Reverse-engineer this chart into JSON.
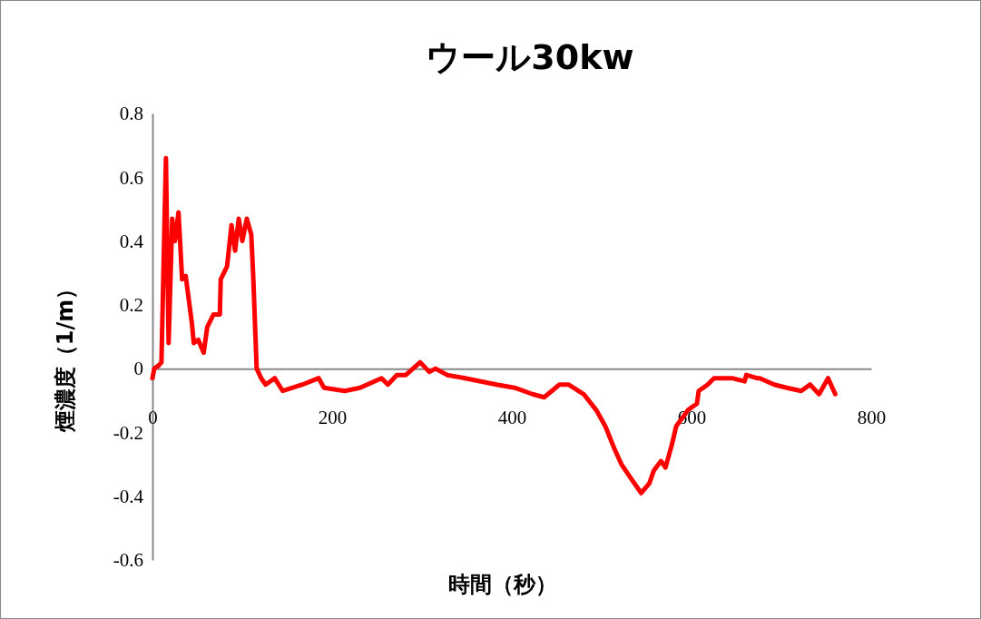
{
  "chart_data": {
    "type": "line",
    "title": "ウール30kw",
    "xlabel": "時間（秒）",
    "ylabel": "煙濃度（1/m）",
    "xlim": [
      0,
      800
    ],
    "xticks": [
      0,
      200,
      400,
      600,
      800
    ],
    "ylim": [
      -0.6,
      0.8
    ],
    "yticks": [
      -0.6,
      -0.4,
      -0.2,
      0,
      0.2,
      0.4,
      0.6,
      0.8
    ],
    "grid": false,
    "marker": "none",
    "line_style": "solid",
    "series": [
      {
        "color": "#ff0000",
        "x": [
          0,
          2,
          7,
          10,
          15,
          18,
          22,
          25,
          29,
          33,
          37,
          44,
          46,
          51,
          57,
          61,
          68,
          75,
          76,
          83,
          88,
          92,
          96,
          100,
          105,
          110,
          112,
          116,
          121,
          126,
          136,
          145,
          167,
          185,
          191,
          214,
          231,
          255,
          262,
          272,
          282,
          298,
          308,
          315,
          328,
          348,
          383,
          403,
          423,
          436,
          453,
          463,
          480,
          494,
          504,
          514,
          522,
          534,
          544,
          553,
          558,
          566,
          571,
          578,
          583,
          591,
          596,
          606,
          608,
          618,
          625,
          645,
          659,
          661,
          673,
          676,
          692,
          706,
          722,
          732,
          742,
          752,
          760
        ],
        "values": [
          -0.03,
          0.0,
          0.01,
          0.02,
          0.66,
          0.08,
          0.47,
          0.4,
          0.49,
          0.28,
          0.29,
          0.14,
          0.08,
          0.09,
          0.05,
          0.13,
          0.17,
          0.17,
          0.28,
          0.32,
          0.45,
          0.37,
          0.47,
          0.4,
          0.47,
          0.42,
          0.3,
          0.0,
          -0.03,
          -0.05,
          -0.03,
          -0.07,
          -0.05,
          -0.03,
          -0.06,
          -0.07,
          -0.06,
          -0.03,
          -0.05,
          -0.02,
          -0.02,
          0.02,
          -0.01,
          0.0,
          -0.02,
          -0.03,
          -0.05,
          -0.06,
          -0.08,
          -0.09,
          -0.05,
          -0.05,
          -0.08,
          -0.13,
          -0.18,
          -0.25,
          -0.3,
          -0.35,
          -0.39,
          -0.36,
          -0.32,
          -0.29,
          -0.31,
          -0.24,
          -0.18,
          -0.15,
          -0.13,
          -0.11,
          -0.07,
          -0.05,
          -0.03,
          -0.03,
          -0.04,
          -0.02,
          -0.03,
          -0.03,
          -0.05,
          -0.06,
          -0.07,
          -0.05,
          -0.08,
          -0.03,
          -0.08
        ]
      }
    ]
  }
}
